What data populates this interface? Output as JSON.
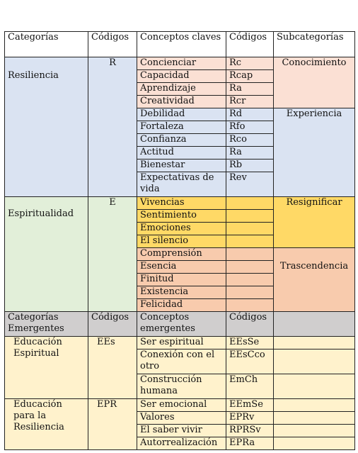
{
  "header": {
    "categorias": "Categorías",
    "codigos": "Códigos",
    "conceptos": "Conceptos claves",
    "codigos2": "Códigos",
    "subcategorias": "Subcategorías"
  },
  "resiliencia": {
    "categoria": "Resiliencia",
    "codigo": "R",
    "sub_conocimiento": "Conocimiento",
    "sub_experiencia": "Experiencia",
    "conceptos_conocimiento": [
      {
        "concepto": "Concienciar",
        "codigo": "Rc"
      },
      {
        "concepto": "Capacidad",
        "codigo": "Rcap"
      },
      {
        "concepto": "Aprendizaje",
        "codigo": "Ra"
      },
      {
        "concepto": "Creatividad",
        "codigo": "Rcr"
      }
    ],
    "conceptos_experiencia": [
      {
        "concepto": "Debilidad",
        "codigo": "Rd"
      },
      {
        "concepto": "Fortaleza",
        "codigo": "Rfo"
      },
      {
        "concepto": "Confianza",
        "codigo": "Rco"
      },
      {
        "concepto": "Actitud",
        "codigo": "Ra"
      },
      {
        "concepto": "Bienestar",
        "codigo": "Rb"
      },
      {
        "concepto": "Expectativas de vida",
        "codigo": "Rev"
      }
    ]
  },
  "espiritualidad": {
    "categoria": "Espiritualidad",
    "codigo": "E",
    "sub_resignificar": "Resignificar",
    "sub_trascendencia": "Trascendencia",
    "conceptos_resignificar": [
      "Vivencias",
      "Sentimiento",
      "Emociones",
      "El silencio"
    ],
    "conceptos_trascendencia": [
      "Comprensión",
      "Esencia",
      "Finitud",
      "Existencia",
      "Felicidad"
    ]
  },
  "emergentes_header": {
    "categorias": "Categorías Emergentes",
    "codigos": "Códigos",
    "conceptos": "Conceptos emergentes",
    "codigos2": "Códigos"
  },
  "educacion_espiritual": {
    "categoria": "Educación Espiritual",
    "codigo": "EEs",
    "conceptos": [
      {
        "concepto": "Ser espiritual",
        "codigo": "EEsSe"
      },
      {
        "concepto": "Conexión con el otro",
        "codigo": "EEsCco"
      },
      {
        "concepto": "Construcción humana",
        "codigo": "EmCh"
      }
    ]
  },
  "educacion_resiliencia": {
    "categoria": "Educación para la Resiliencia",
    "codigo": "EPR",
    "conceptos": [
      {
        "concepto": "Ser emocional",
        "codigo": "EEmSe"
      },
      {
        "concepto": "Valores",
        "codigo": "EPRv"
      },
      {
        "concepto": "El saber vivir",
        "codigo": "RPRSv"
      },
      {
        "concepto": "Autorrealización",
        "codigo": "EPRa"
      }
    ]
  }
}
